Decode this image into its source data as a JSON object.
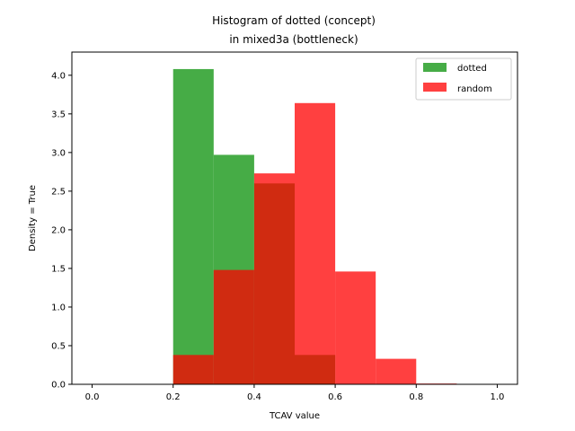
{
  "chart_data": {
    "type": "bar",
    "title_line1": "Histogram of dotted (concept)",
    "title_line2": "in mixed3a (bottleneck)",
    "xlabel": "TCAV value",
    "ylabel": "Density = True",
    "xlim": [
      -0.05,
      1.05
    ],
    "ylim": [
      0,
      4.3
    ],
    "xticks": [
      "0.0",
      "0.2",
      "0.4",
      "0.6",
      "0.8",
      "1.0"
    ],
    "yticks": [
      "0.0",
      "0.5",
      "1.0",
      "1.5",
      "2.0",
      "2.5",
      "3.0",
      "3.5",
      "4.0"
    ],
    "legend_position": "top-right",
    "bin_width": 0.1,
    "series": [
      {
        "name": "dotted",
        "color": "#2ca02c",
        "bins": [
          {
            "x0": 0.2,
            "value": 4.08
          },
          {
            "x0": 0.3,
            "value": 2.97
          },
          {
            "x0": 0.4,
            "value": 2.6
          },
          {
            "x0": 0.5,
            "value": 0.38
          }
        ]
      },
      {
        "name": "random",
        "color": "#ff0000",
        "bins": [
          {
            "x0": 0.2,
            "value": 0.38
          },
          {
            "x0": 0.3,
            "value": 1.48
          },
          {
            "x0": 0.4,
            "value": 2.73
          },
          {
            "x0": 0.5,
            "value": 3.64
          },
          {
            "x0": 0.6,
            "value": 1.46
          },
          {
            "x0": 0.7,
            "value": 0.33
          },
          {
            "x0": 0.8,
            "value": 0.01
          }
        ]
      }
    ]
  }
}
